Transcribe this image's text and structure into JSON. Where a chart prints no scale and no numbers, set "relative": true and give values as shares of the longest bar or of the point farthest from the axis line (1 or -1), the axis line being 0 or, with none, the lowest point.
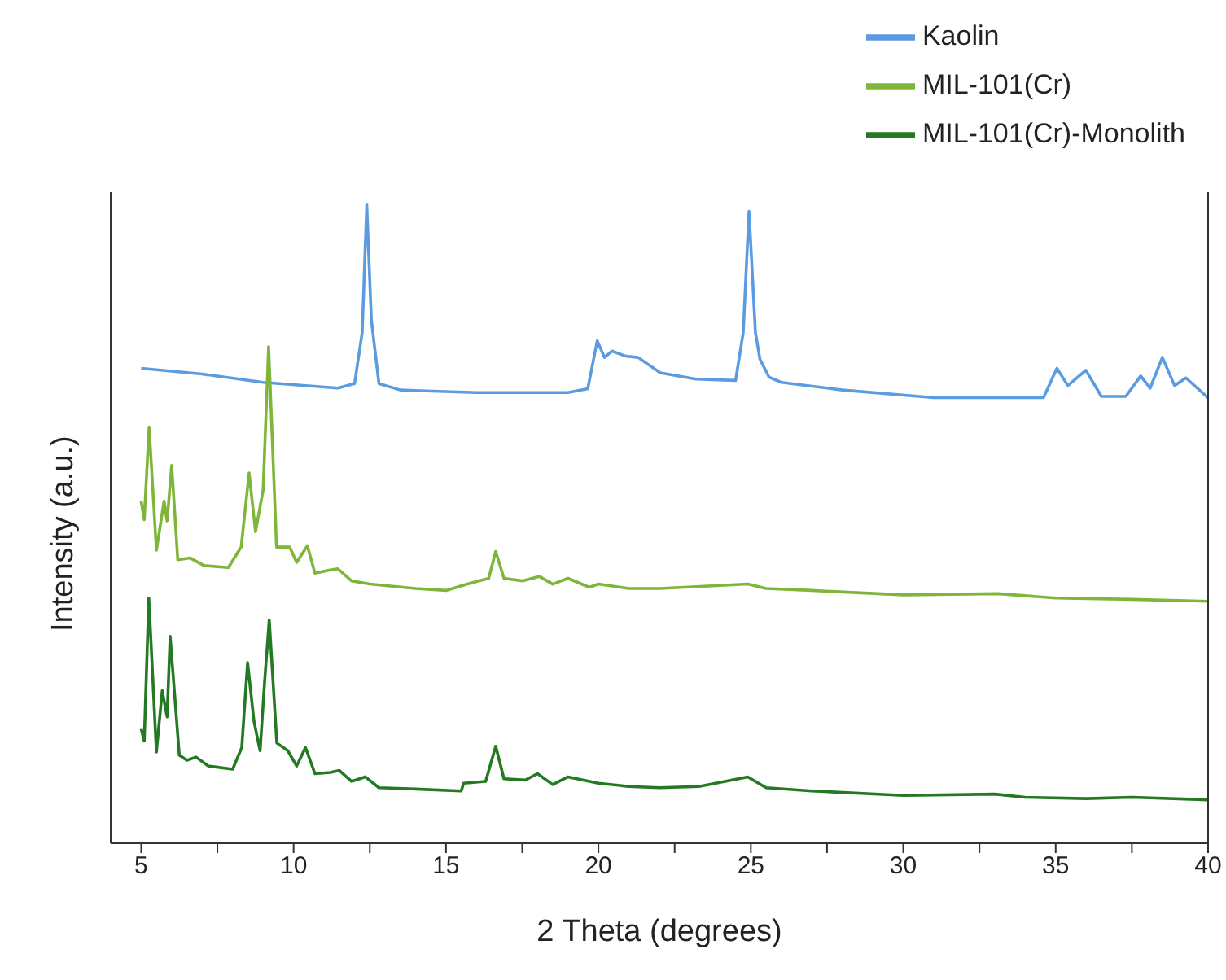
{
  "chart_data": {
    "type": "line",
    "relative": true,
    "xlabel": "2 Theta (degrees)",
    "ylabel": "Intensity (a.u.)",
    "xlim": [
      4,
      40
    ],
    "xticks": [
      5,
      {
        "value": 7.5,
        "label": null
      },
      10,
      {
        "value": 12.5,
        "label": null
      },
      15,
      {
        "value": 17.5,
        "label": null
      },
      20,
      {
        "value": 22.5,
        "label": null
      },
      25,
      {
        "value": 27.5,
        "label": null
      },
      30,
      {
        "value": 32.5,
        "label": null
      },
      35,
      {
        "value": 37.5,
        "label": null
      },
      40
    ],
    "legend": "top right",
    "marker": "none",
    "line_style": "solid",
    "grid": false,
    "series": [
      {
        "name": "Kaolin",
        "color": "#5b9be0",
        "x": [
          5,
          7,
          9,
          11.45,
          12.0,
          12.25,
          12.4,
          12.55,
          12.8,
          13.5,
          16,
          19,
          19.65,
          19.96,
          20.2,
          20.44,
          20.9,
          21.3,
          22.03,
          23.2,
          24.5,
          24.75,
          24.94,
          25.15,
          25.3,
          25.6,
          26,
          28,
          31,
          34.6,
          35.04,
          35.4,
          35.99,
          36.5,
          37.3,
          37.79,
          38.1,
          38.5,
          38.9,
          39.27,
          40
        ],
        "values": [
          0.744,
          0.735,
          0.722,
          0.713,
          0.72,
          0.8,
          1,
          0.82,
          0.72,
          0.71,
          0.706,
          0.706,
          0.712,
          0.787,
          0.761,
          0.771,
          0.763,
          0.761,
          0.737,
          0.727,
          0.725,
          0.8,
          0.99,
          0.8,
          0.758,
          0.73,
          0.722,
          0.71,
          0.698,
          0.698,
          0.744,
          0.717,
          0.741,
          0.7,
          0.7,
          0.732,
          0.713,
          0.761,
          0.717,
          0.729,
          0.698
        ]
      },
      {
        "name": "MIL-101(Cr)",
        "color": "#7fb539",
        "x": [
          5,
          5.1,
          5.26,
          5.5,
          5.75,
          5.85,
          6.0,
          6.2,
          6.6,
          7.06,
          7.86,
          8.28,
          8.54,
          8.75,
          9.0,
          9.18,
          9.44,
          9.87,
          10.1,
          10.45,
          10.7,
          11.2,
          11.45,
          11.9,
          12.5,
          14,
          15,
          15.7,
          16.4,
          16.63,
          16.9,
          17.5,
          18.06,
          18.5,
          19.0,
          19.7,
          20,
          21,
          22.03,
          24.9,
          25.5,
          27,
          30,
          33.1,
          35,
          37.5,
          40
        ],
        "values": [
          0.536,
          0.507,
          0.652,
          0.459,
          0.536,
          0.505,
          0.592,
          0.444,
          0.447,
          0.435,
          0.432,
          0.464,
          0.58,
          0.488,
          0.553,
          0.778,
          0.464,
          0.464,
          0.44,
          0.466,
          0.423,
          0.428,
          0.43,
          0.411,
          0.406,
          0.399,
          0.396,
          0.406,
          0.415,
          0.457,
          0.415,
          0.411,
          0.418,
          0.406,
          0.415,
          0.401,
          0.406,
          0.399,
          0.399,
          0.406,
          0.399,
          0.396,
          0.389,
          0.391,
          0.384,
          0.382,
          0.379
        ]
      },
      {
        "name": "MIL-101(Cr)-Monolith",
        "color": "#237a22",
        "x": [
          5,
          5.1,
          5.25,
          5.5,
          5.69,
          5.85,
          5.95,
          6.25,
          6.5,
          6.8,
          7.2,
          8,
          8.3,
          8.49,
          8.7,
          8.9,
          9.05,
          9.2,
          9.45,
          9.81,
          10.1,
          10.39,
          10.7,
          11.2,
          11.5,
          11.9,
          12.35,
          12.8,
          14,
          15.5,
          15.58,
          16.3,
          16.63,
          16.9,
          17.6,
          18.0,
          18.5,
          19.0,
          20,
          21,
          22,
          23.3,
          24.9,
          25.5,
          27,
          30,
          33,
          34,
          36,
          37.5,
          40
        ],
        "values": [
          0.179,
          0.16,
          0.384,
          0.143,
          0.239,
          0.198,
          0.324,
          0.138,
          0.13,
          0.135,
          0.121,
          0.116,
          0.15,
          0.283,
          0.191,
          0.145,
          0.254,
          0.35,
          0.157,
          0.145,
          0.121,
          0.15,
          0.109,
          0.111,
          0.114,
          0.097,
          0.104,
          0.087,
          0.085,
          0.082,
          0.094,
          0.097,
          0.152,
          0.101,
          0.099,
          0.109,
          0.092,
          0.104,
          0.094,
          0.089,
          0.087,
          0.089,
          0.104,
          0.087,
          0.082,
          0.075,
          0.077,
          0.072,
          0.07,
          0.072,
          0.068
        ]
      }
    ]
  }
}
